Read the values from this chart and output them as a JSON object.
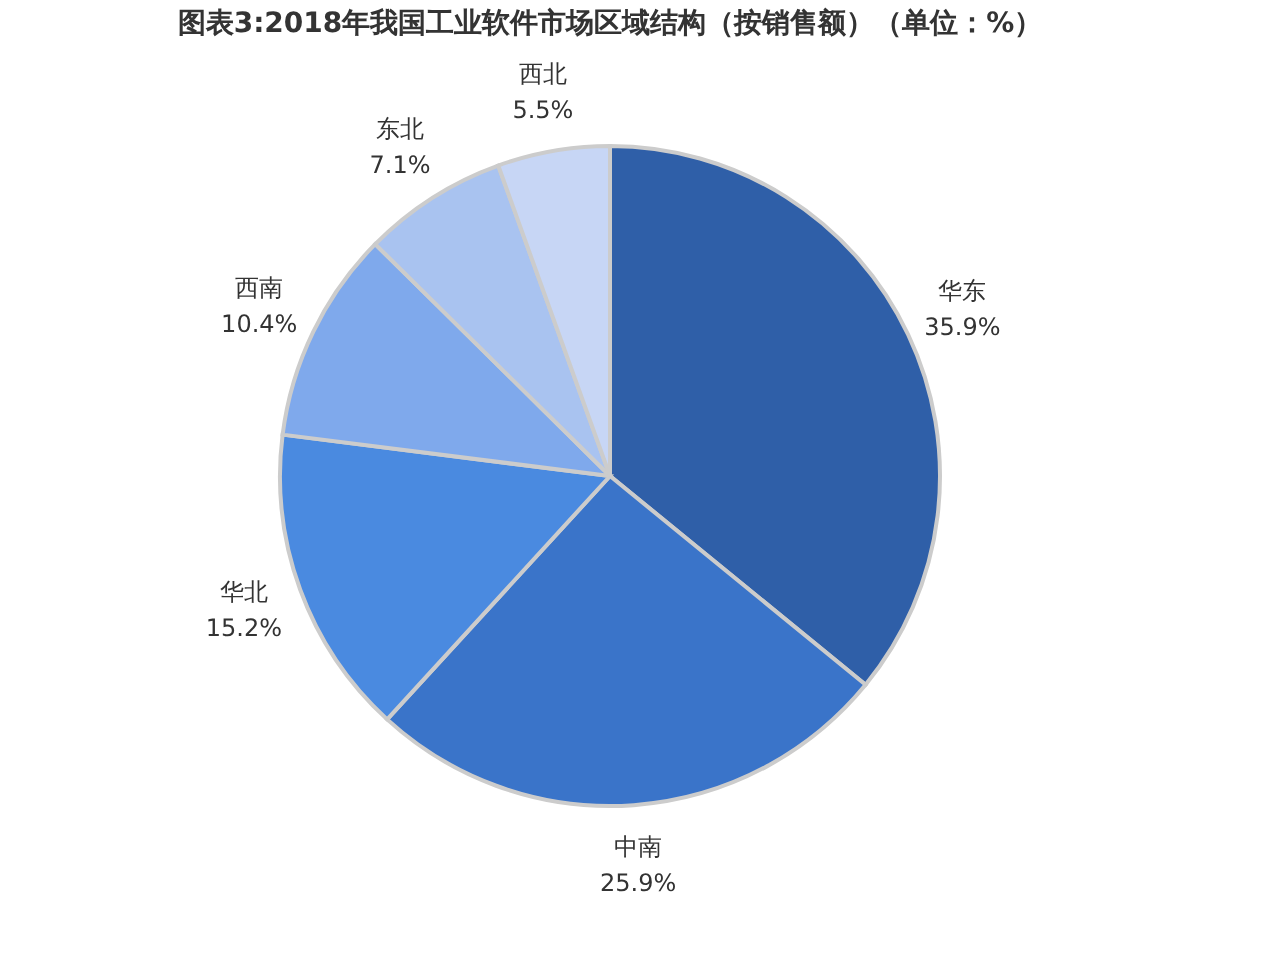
{
  "chart_data": {
    "type": "pie",
    "title": "图表3:2018年我国工业软件市场区域结构（按销售额）（单位：%）",
    "categories": [
      "华东",
      "中南",
      "华北",
      "西南",
      "东北",
      "西北"
    ],
    "values": [
      35.9,
      25.9,
      15.2,
      10.4,
      7.1,
      5.5
    ],
    "colors": [
      "#2f5fa8",
      "#3a74c9",
      "#4a8ae0",
      "#7fa9ec",
      "#a9c3f0",
      "#c7d6f5"
    ],
    "value_labels": [
      "35.9%",
      "25.9%",
      "15.2%",
      "10.4%",
      "7.1%",
      "5.5%"
    ],
    "legend": false
  }
}
